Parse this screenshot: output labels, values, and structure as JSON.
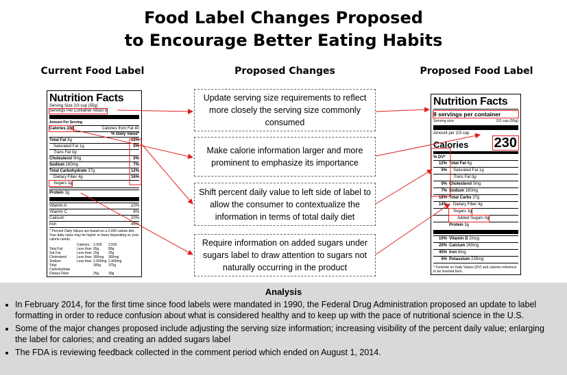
{
  "title": [
    "Food Label Changes Proposed",
    "to Encourage Better Eating Habits"
  ],
  "headings": {
    "current": "Current Food Label",
    "changes": "Proposed Changes",
    "proposed": "Proposed Food Label"
  },
  "changes": [
    "Update serving size requirements to reflect more closely the serving size commonly consumed",
    "Make calorie information larger and more prominent to emphasize its importance",
    "Shift percent daily value to left side of label to allow the consumer to contextualize the information in terms of total daily diet",
    "Require information on added sugars under sugars label to draw attention to sugars not naturally occurring in the product"
  ],
  "current_label": {
    "title": "Nutrition Facts",
    "serving_size": "Serving Size 2/3 cup (55g)",
    "servings": "Servings Per Container About 8",
    "amount": "Amount Per Serving",
    "calories": "Calories 230",
    "calories_from_fat": "Calories from Fat 40",
    "dv_header": "% Daily Value*",
    "nutrients": [
      {
        "name": "Total Fat",
        "amount": "8g",
        "pct": "12%"
      },
      {
        "name": "Saturated Fat",
        "amount": "1g",
        "pct": "5%"
      },
      {
        "name": "Trans Fat",
        "amount": "0g"
      },
      {
        "name": "Cholesterol",
        "amount": "0mg",
        "pct": "0%"
      },
      {
        "name": "Sodium",
        "amount": "160mg",
        "pct": "7%"
      },
      {
        "name": "Total Carbohydrate",
        "amount": "37g",
        "pct": "12%"
      },
      {
        "name": "Dietary Fiber",
        "amount": "4g",
        "pct": "16%"
      },
      {
        "name": "Sugars",
        "amount": "1g"
      },
      {
        "name": "Protein",
        "amount": "3g"
      }
    ],
    "vitamins": [
      {
        "name": "Vitamin A",
        "pct": "10%"
      },
      {
        "name": "Vitamin C",
        "pct": "8%"
      },
      {
        "name": "Calcium",
        "pct": "20%"
      },
      {
        "name": "Iron",
        "pct": "45%"
      }
    ],
    "footnote": "* Percent Daily Values are based on a 2,000 calorie diet. Your daily value may be higher or lower depending on your calorie needs.",
    "table": {
      "header": {
        "label": "Calories:",
        "values": [
          "2,000",
          "2,500"
        ]
      },
      "rows": [
        {
          "name": "Total Fat",
          "limit": "Less than",
          "values": [
            "65g",
            "80g"
          ]
        },
        {
          "name": "Sat Fat",
          "limit": "Less than",
          "values": [
            "20g",
            "25g"
          ]
        },
        {
          "name": "Cholesterol",
          "limit": "Less than",
          "values": [
            "300mg",
            "300mg"
          ]
        },
        {
          "name": "Sodium",
          "limit": "Less than",
          "values": [
            "2,400mg",
            "2,400mg"
          ]
        },
        {
          "name": "Total Carbohydrate",
          "values": [
            "300g",
            "375g"
          ]
        },
        {
          "name": "Dietary Fiber",
          "values": [
            "25g",
            "30g"
          ]
        }
      ]
    }
  },
  "proposed_label": {
    "title": "Nutrition Facts",
    "servings": "8 servings per container",
    "serving_size_label": "Serving size",
    "serving_size": "2/3 cup (55g)",
    "amount": "Amount per 2/3 cup",
    "calories_label": "Calories",
    "calories_value": "230",
    "dv_header": "% DV*",
    "nutrients": [
      {
        "pct": "12%",
        "name": "Total Fat",
        "amount": "8g"
      },
      {
        "pct": "5%",
        "name": "Saturated Fat",
        "amount": "1g"
      },
      {
        "name": "Trans Fat",
        "amount": "0g"
      },
      {
        "pct": "0%",
        "name": "Cholesterol",
        "amount": "0mg"
      },
      {
        "pct": "7%",
        "name": "Sodium",
        "amount": "160mg"
      },
      {
        "pct": "12%",
        "name": "Total Carbs",
        "amount": "37g"
      },
      {
        "pct": "14%",
        "name": "Dietary Fiber",
        "amount": "4g"
      },
      {
        "name": "Sugars",
        "amount": "1g"
      },
      {
        "name": "Added Sugars",
        "amount": "0g"
      },
      {
        "name": "Protein",
        "amount": "3g"
      }
    ],
    "vitamins": [
      {
        "pct": "10%",
        "name": "Vitamin D",
        "amount": "2mcg"
      },
      {
        "pct": "20%",
        "name": "Calcium",
        "amount": "260mg"
      },
      {
        "pct": "45%",
        "name": "Iron",
        "amount": "8mg"
      },
      {
        "pct": "5%",
        "name": "Potassium",
        "amount": "235mg"
      }
    ],
    "footnote": "* Footnote on Daily Values (DV) and calories reference to be inserted here."
  },
  "analysis": {
    "title": "Analysis",
    "bullets": [
      "In February 2014, for the first time since food labels were mandated in 1990, the Federal Drug Administration proposed an update to label formatting in order to reduce confusion about what is considered healthy and to keep up with the pace of nutritional science in the U.S.",
      "Some of the major changes proposed include adjusting the serving size information; increasing visibility of the percent daily value; enlarging the label for calories; and creating an added sugars label",
      "The FDA is reviewing feedback collected in the comment period which ended on August 1, 2014."
    ]
  }
}
